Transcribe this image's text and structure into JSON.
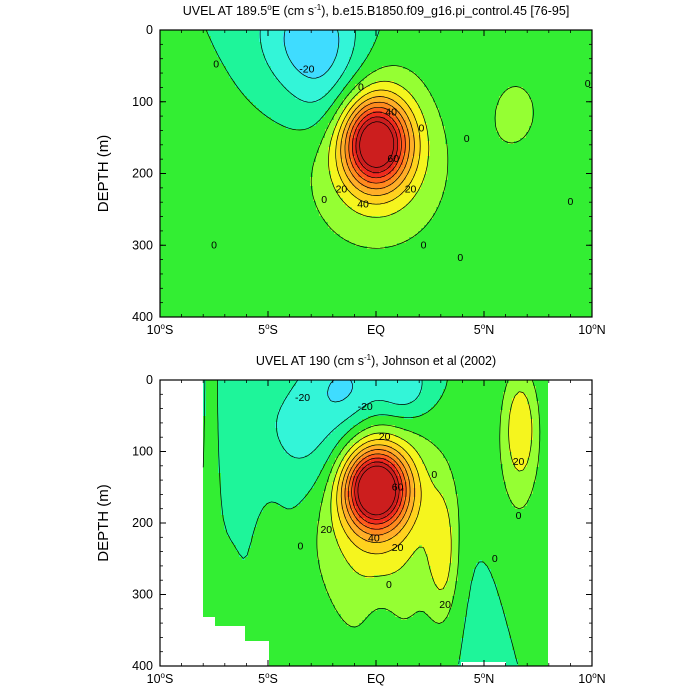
{
  "chart_data": [
    {
      "type": "contour",
      "title": "UVEL AT 189.5°E (cm s⁻¹), b.e15.B1850.f09_g16.pi_control.45 [76-95]",
      "title_parts": {
        "pre": "UVEL AT 189.5",
        "deg": "o",
        "mid": "E (cm s",
        "sup": "-1",
        "post": "), b.e15.B1850.f09_g16.pi_control.45 [76-95]"
      },
      "ylabel": "DEPTH (m)",
      "xlabel": "",
      "xlim": [
        -10,
        10
      ],
      "ylim": [
        0,
        400
      ],
      "y_inverted": true,
      "x_ticks": [
        {
          "value": -10,
          "num": "10",
          "hemi": "S"
        },
        {
          "value": -5,
          "num": "5",
          "hemi": "S"
        },
        {
          "value": 0,
          "num": "EQ",
          "hemi": ""
        },
        {
          "value": 5,
          "num": "5",
          "hemi": "N"
        },
        {
          "value": 10,
          "num": "10",
          "hemi": "N"
        }
      ],
      "y_ticks": [
        0,
        100,
        200,
        300,
        400
      ],
      "contour_levels": [
        -40,
        -30,
        -20,
        -10,
        0,
        10,
        20,
        30,
        40,
        50,
        60,
        70,
        80,
        90
      ],
      "data_extent": [
        -10,
        10
      ],
      "core": {
        "lon": 0,
        "depth": 158,
        "max_speed": 95
      },
      "contour_labels": [
        {
          "text": "0",
          "lon": -7.4,
          "depth": 48
        },
        {
          "text": "-20",
          "lon": -3.2,
          "depth": 55
        },
        {
          "text": "0",
          "lon": -0.7,
          "depth": 80
        },
        {
          "text": "40",
          "lon": 0.7,
          "depth": 115
        },
        {
          "text": "0",
          "lon": 2.1,
          "depth": 137
        },
        {
          "text": "0",
          "lon": 4.2,
          "depth": 152
        },
        {
          "text": "60",
          "lon": 0.8,
          "depth": 180
        },
        {
          "text": "20",
          "lon": -1.6,
          "depth": 222
        },
        {
          "text": "0",
          "lon": -2.4,
          "depth": 237
        },
        {
          "text": "20",
          "lon": 1.6,
          "depth": 222
        },
        {
          "text": "40",
          "lon": -0.6,
          "depth": 243
        },
        {
          "text": "0",
          "lon": 9.0,
          "depth": 240
        },
        {
          "text": "0",
          "lon": 9.8,
          "depth": 75
        },
        {
          "text": "0",
          "lon": -7.5,
          "depth": 300
        },
        {
          "text": "0",
          "lon": 2.2,
          "depth": 300
        },
        {
          "text": "0",
          "lon": 3.9,
          "depth": 318
        }
      ]
    },
    {
      "type": "contour",
      "title": "UVEL AT 190 (cm s⁻¹), Johnson et al (2002)",
      "title_parts": {
        "pre": "UVEL AT 190",
        "deg": "",
        "mid": " (cm s",
        "sup": "-1",
        "post": "), Johnson et al (2002)"
      },
      "ylabel": "DEPTH (m)",
      "xlabel": "",
      "xlim": [
        -10,
        10
      ],
      "ylim": [
        0,
        400
      ],
      "y_inverted": true,
      "x_ticks": [
        {
          "value": -10,
          "num": "10",
          "hemi": "S"
        },
        {
          "value": -5,
          "num": "5",
          "hemi": "S"
        },
        {
          "value": 0,
          "num": "EQ",
          "hemi": ""
        },
        {
          "value": 5,
          "num": "5",
          "hemi": "N"
        },
        {
          "value": 10,
          "num": "10",
          "hemi": "N"
        }
      ],
      "y_ticks": [
        0,
        100,
        200,
        300,
        400
      ],
      "contour_levels": [
        -40,
        -30,
        -20,
        -10,
        0,
        10,
        20,
        30,
        40,
        50,
        60,
        70,
        80,
        90
      ],
      "data_extent": [
        -8,
        8
      ],
      "core": {
        "lon": 0,
        "depth": 152,
        "max_speed": 100
      },
      "contour_labels": [
        {
          "text": "-20",
          "lon": -3.4,
          "depth": 25
        },
        {
          "text": "-20",
          "lon": -0.5,
          "depth": 38
        },
        {
          "text": "20",
          "lon": 0.4,
          "depth": 80
        },
        {
          "text": "0",
          "lon": 2.7,
          "depth": 133
        },
        {
          "text": "20",
          "lon": 6.6,
          "depth": 115
        },
        {
          "text": "60",
          "lon": 1.0,
          "depth": 150
        },
        {
          "text": "0",
          "lon": 6.6,
          "depth": 190
        },
        {
          "text": "20",
          "lon": -2.3,
          "depth": 210
        },
        {
          "text": "40",
          "lon": -0.1,
          "depth": 222
        },
        {
          "text": "20",
          "lon": 1.0,
          "depth": 235
        },
        {
          "text": "0",
          "lon": -3.5,
          "depth": 233
        },
        {
          "text": "0",
          "lon": 5.5,
          "depth": 250
        },
        {
          "text": "0",
          "lon": 0.6,
          "depth": 287
        },
        {
          "text": "20",
          "lon": 3.2,
          "depth": 315
        }
      ]
    }
  ]
}
